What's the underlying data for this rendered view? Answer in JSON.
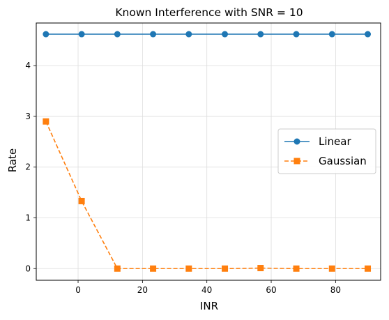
{
  "chart_data": {
    "type": "line",
    "title": "Known Interference with SNR = 10",
    "xlabel": "INR",
    "ylabel": "Rate",
    "xlim": [
      -13,
      94
    ],
    "ylim": [
      -0.23,
      4.84
    ],
    "xticks": [
      0,
      20,
      40,
      60,
      80
    ],
    "yticks": [
      0,
      1,
      2,
      3,
      4
    ],
    "grid": true,
    "legend_position": "center-right",
    "x": [
      -10,
      1.1,
      12.2,
      23.3,
      34.4,
      45.6,
      56.7,
      67.8,
      78.9,
      90
    ],
    "series": [
      {
        "name": "Linear",
        "color": "#1f77b4",
        "linestyle": "solid",
        "marker": "circle",
        "values": [
          4.62,
          4.62,
          4.62,
          4.62,
          4.62,
          4.62,
          4.62,
          4.62,
          4.62,
          4.62
        ]
      },
      {
        "name": "Gaussian",
        "color": "#ff7f0e",
        "linestyle": "dashed",
        "marker": "square",
        "values": [
          2.9,
          1.33,
          0.0,
          0.0,
          0.0,
          0.0,
          0.01,
          0.0,
          0.0,
          0.0
        ]
      }
    ]
  }
}
